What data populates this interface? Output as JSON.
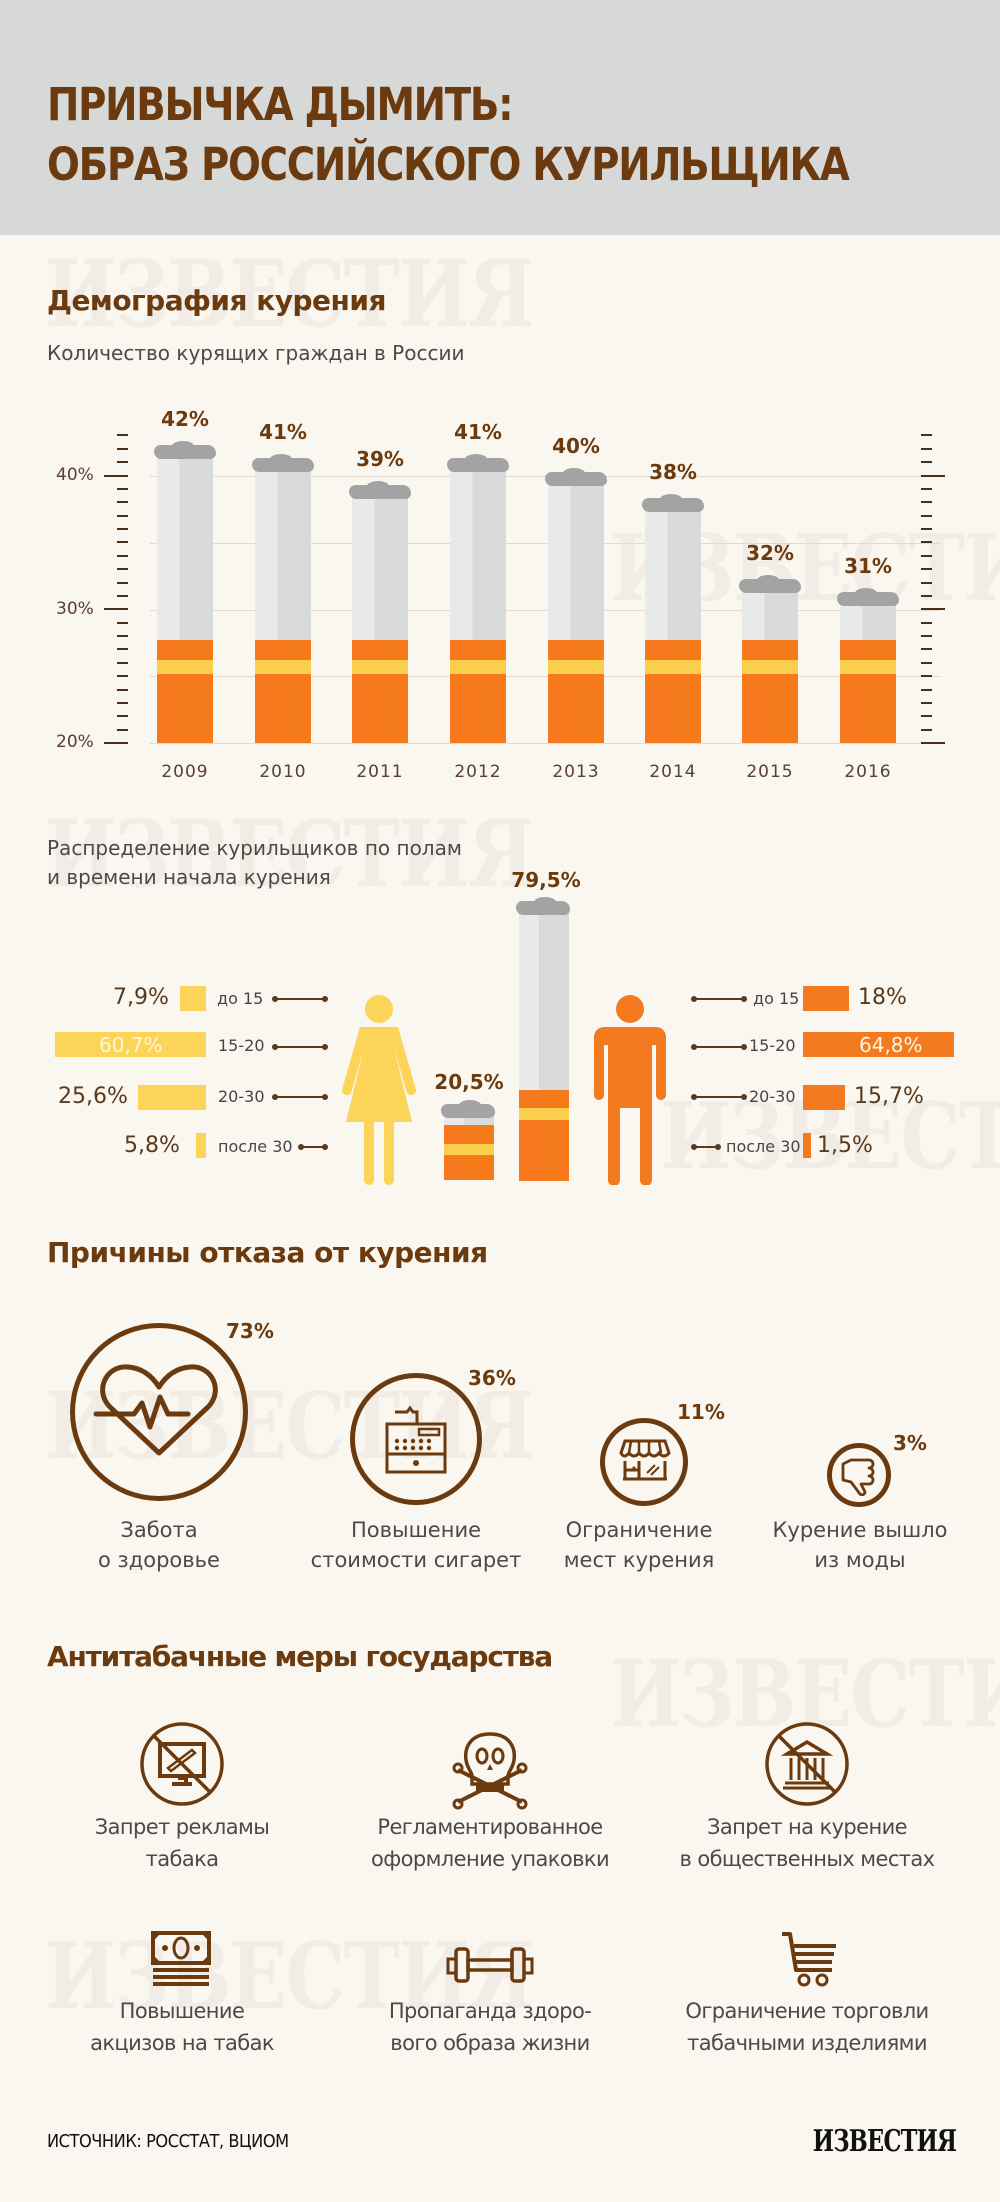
{
  "header": {
    "title_line1": "ПРИВЫЧКА ДЫМИТЬ:",
    "title_line2": "ОБРАЗ РОССИЙСКОГО КУРИЛЬЩИКА"
  },
  "watermark": "ИЗВЕСТИЯ",
  "demography": {
    "heading": "Демография курения",
    "chart_title": "Количество курящих граждан в России",
    "y_ticks": [
      "40%",
      "30%",
      "20%"
    ]
  },
  "chart_data": [
    {
      "type": "bar",
      "title": "Количество курящих граждан в России",
      "categories": [
        "2009",
        "2010",
        "2011",
        "2012",
        "2013",
        "2014",
        "2015",
        "2016"
      ],
      "values": [
        42,
        41,
        39,
        41,
        40,
        38,
        32,
        31
      ],
      "value_labels": [
        "42%",
        "41%",
        "39%",
        "41%",
        "40%",
        "38%",
        "32%",
        "31%"
      ],
      "xlabel": "",
      "ylabel": "",
      "ylim": [
        20,
        43
      ],
      "yticks": [
        20,
        30,
        40
      ],
      "grid": true,
      "style": "cigarette bars"
    },
    {
      "type": "bar",
      "title": "Распределение курильщиков по полам и времени начала курения",
      "categories": [
        "до 15",
        "15-20",
        "20-30",
        "после 30"
      ],
      "series": [
        {
          "name": "Женщины",
          "total": 20.5,
          "values": [
            7.9,
            60.7,
            25.6,
            5.8
          ],
          "color": "#fcd457"
        },
        {
          "name": "Мужчины",
          "total": 79.5,
          "values": [
            18,
            64.8,
            15.7,
            1.5
          ],
          "color": "#f47a20"
        }
      ]
    },
    {
      "type": "bar",
      "title": "Причины отказа от курения",
      "categories": [
        "Забота о здоровье",
        "Повышение стоимости сигарет",
        "Ограничение мест курения",
        "Курение вышло из моды"
      ],
      "values": [
        73,
        36,
        11,
        3
      ]
    }
  ],
  "smokers_chart": {
    "bars": [
      {
        "year": "2009",
        "label": "42%",
        "value": 42
      },
      {
        "year": "2010",
        "label": "41%",
        "value": 41
      },
      {
        "year": "2011",
        "label": "39%",
        "value": 39
      },
      {
        "year": "2012",
        "label": "41%",
        "value": 41
      },
      {
        "year": "2013",
        "label": "40%",
        "value": 40
      },
      {
        "year": "2014",
        "label": "38%",
        "value": 38
      },
      {
        "year": "2015",
        "label": "32%",
        "value": 32
      },
      {
        "year": "2016",
        "label": "31%",
        "value": 31
      }
    ]
  },
  "gender": {
    "title_line1": "Распределение курильщиков по полам",
    "title_line2": "и времени начала курения",
    "female_total": "20,5%",
    "male_total": "79,5%",
    "female": [
      {
        "age": "до 15",
        "value": "7,9%"
      },
      {
        "age": "15-20",
        "value": "60,7%"
      },
      {
        "age": "20-30",
        "value": "25,6%"
      },
      {
        "age": "после 30",
        "value": "5,8%"
      }
    ],
    "male": [
      {
        "age": "до 15",
        "value": "18%"
      },
      {
        "age": "15-20",
        "value": "64,8%"
      },
      {
        "age": "20-30",
        "value": "15,7%"
      },
      {
        "age": "после 30",
        "value": "1,5%"
      }
    ]
  },
  "reasons": {
    "heading": "Причины отказа от курения",
    "items": [
      {
        "icon": "heartbeat-icon",
        "percent": "73%",
        "line1": "Забота",
        "line2": "о здоровье"
      },
      {
        "icon": "cash-register-icon",
        "percent": "36%",
        "line1": "Повышение",
        "line2": "стоимости сигарет"
      },
      {
        "icon": "storefront-icon",
        "percent": "11%",
        "line1": "Ограничение",
        "line2": "мест курения"
      },
      {
        "icon": "thumbs-down-icon",
        "percent": "3%",
        "line1": "Курение вышло",
        "line2": "из моды"
      }
    ]
  },
  "measures": {
    "heading": "Антитабачные меры государства",
    "items": [
      {
        "icon": "no-advertising-icon",
        "line1": "Запрет рекламы",
        "line2": "табака"
      },
      {
        "icon": "skull-crossbones-icon",
        "line1": "Регламентированное",
        "line2": "оформление упаковки"
      },
      {
        "icon": "no-public-building-icon",
        "line1": "Запрет на курение",
        "line2": "в общественных местах"
      },
      {
        "icon": "money-stack-icon",
        "line1": "Повышение",
        "line2": "акцизов на табак"
      },
      {
        "icon": "dumbbell-icon",
        "line1": "Пропаганда здоро-",
        "line2": "вого образа жизни"
      },
      {
        "icon": "shopping-cart-icon",
        "line1": "Ограничение торговли",
        "line2": "табачными изделиями"
      }
    ]
  },
  "footer": {
    "source": "ИСТОЧНИК: РОССТАТ, ВЦИОМ",
    "logo": "ИЗВЕСТИЯ"
  },
  "colors": {
    "brown": "#6b3a0e",
    "orange": "#f47a20",
    "yellow": "#fcd457",
    "background": "#faf6f0",
    "header_bg": "#d7d9d8"
  }
}
